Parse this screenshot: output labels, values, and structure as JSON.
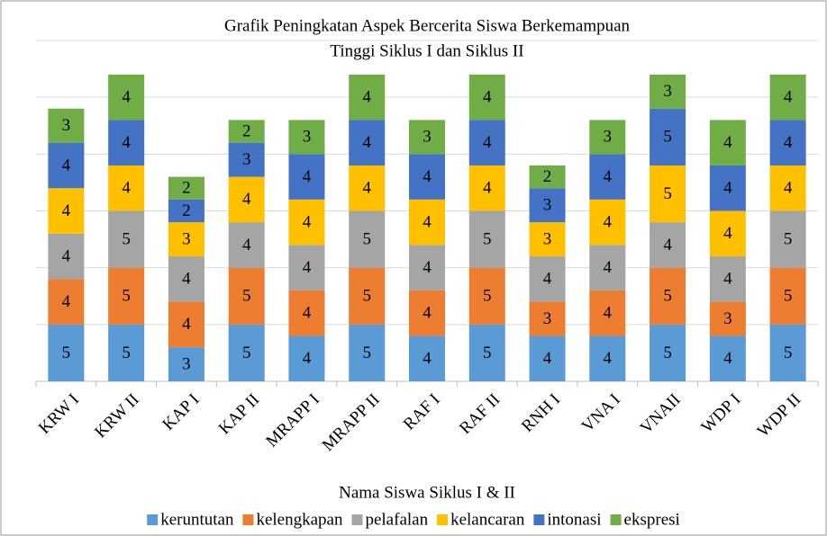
{
  "chart_data": {
    "type": "stacked_bar",
    "title": [
      "Grafik Peningkatan  Aspek Bercerita Siswa Berkemampuan",
      "Tinggi Siklus I dan Siklus II"
    ],
    "x_label": "Nama Siswa Siklus I & II",
    "categories": [
      "KRW I",
      "KRW II",
      "KAP I",
      "KAP II",
      "MRAPP I",
      "MRAPP II",
      "RAF I",
      "RAF II",
      "RNH I",
      "VNA I",
      "VNAII",
      "WDP I",
      "WDP II"
    ],
    "series": [
      {
        "name": "keruntutan",
        "color": "#5b9bd5",
        "values": [
          5,
          5,
          3,
          5,
          4,
          5,
          4,
          5,
          4,
          4,
          5,
          4,
          5
        ]
      },
      {
        "name": "kelengkapan",
        "color": "#ed7d31",
        "values": [
          4,
          5,
          4,
          5,
          4,
          5,
          4,
          5,
          3,
          4,
          5,
          3,
          5
        ]
      },
      {
        "name": "pelafalan",
        "color": "#a5a5a5",
        "values": [
          4,
          5,
          4,
          4,
          4,
          5,
          4,
          5,
          4,
          4,
          4,
          4,
          5
        ]
      },
      {
        "name": "kelancaran",
        "color": "#ffc000",
        "values": [
          4,
          4,
          3,
          4,
          4,
          4,
          4,
          4,
          3,
          4,
          5,
          4,
          4
        ]
      },
      {
        "name": "intonasi",
        "color": "#4472c4",
        "values": [
          4,
          4,
          2,
          3,
          4,
          4,
          4,
          4,
          3,
          4,
          5,
          4,
          4
        ]
      },
      {
        "name": "ekspresi",
        "color": "#70ad47",
        "values": [
          3,
          4,
          2,
          2,
          3,
          4,
          3,
          4,
          2,
          3,
          3,
          4,
          4
        ]
      }
    ],
    "ylim": [
      0,
      30
    ],
    "yticks": [
      0,
      5,
      10,
      15,
      20,
      25,
      30
    ],
    "grid": true,
    "legend": "bottom"
  }
}
